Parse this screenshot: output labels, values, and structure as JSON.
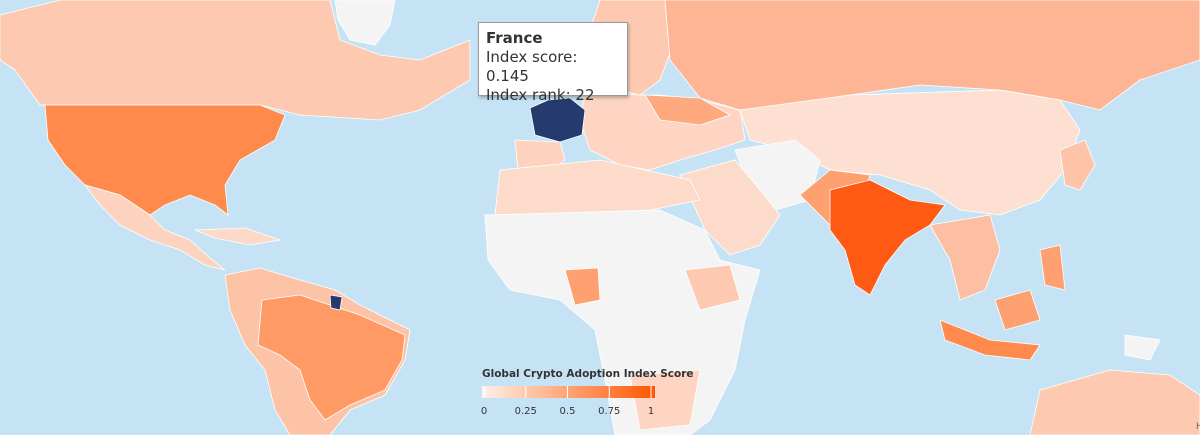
{
  "tooltip": {
    "title": "France",
    "lines": [
      "Index score: 0.145",
      "Index rank: 22"
    ]
  },
  "legend": {
    "title": "Global Crypto Adoption Index Score",
    "range": [
      0,
      1
    ],
    "ticks": [
      0,
      0.25,
      0.5,
      0.75,
      1
    ],
    "colors": [
      "#fff1ea",
      "#ff5500"
    ]
  },
  "credit": "H"
}
